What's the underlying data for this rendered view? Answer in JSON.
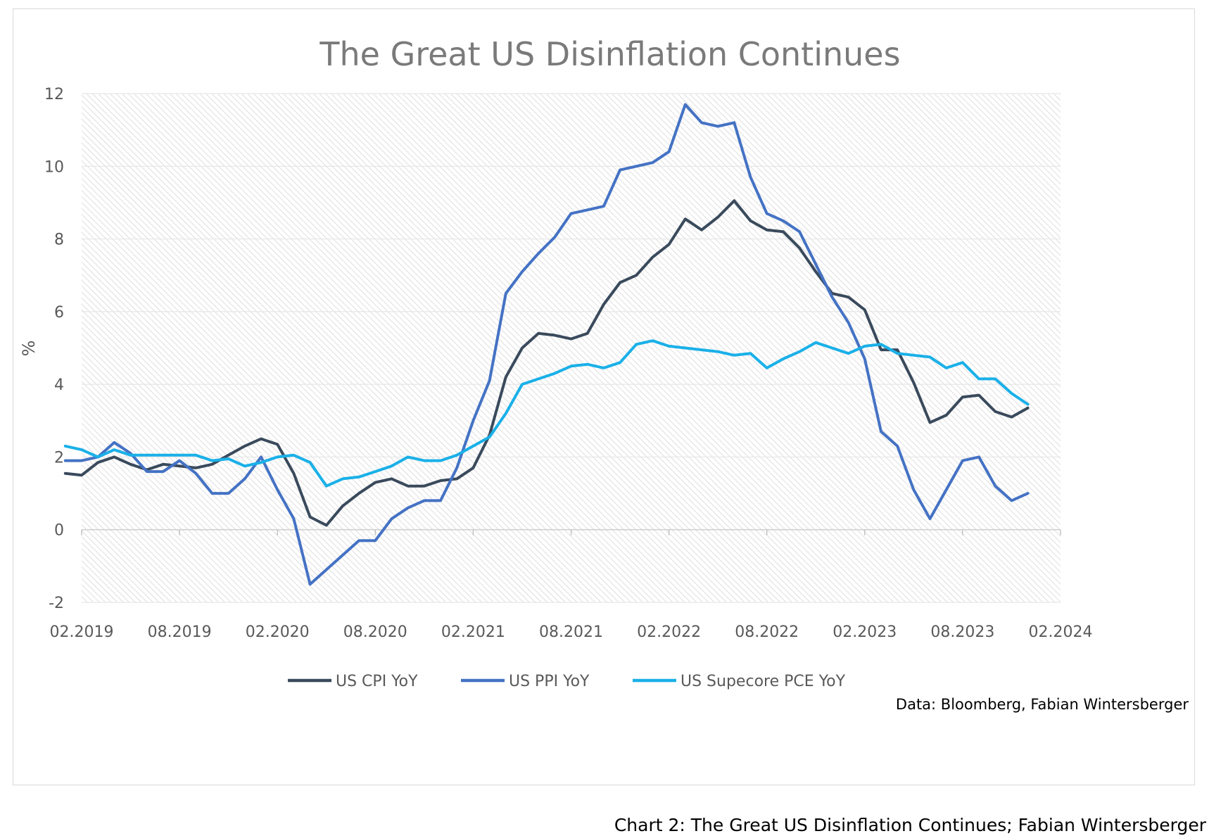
{
  "caption": "Chart 2: The Great US Disinflation Continues; Fabian Wintersberger",
  "chart_data": {
    "type": "line",
    "title": "The Great US Disinflation Continues",
    "xlabel": "",
    "ylabel": "%",
    "ylim": [
      -2,
      12
    ],
    "yticks": [
      -2,
      0,
      2,
      4,
      6,
      8,
      10,
      12
    ],
    "xlim": [
      "02.2019",
      "02.2024"
    ],
    "xticks": [
      "02.2019",
      "08.2019",
      "02.2020",
      "08.2020",
      "02.2021",
      "08.2021",
      "02.2022",
      "08.2022",
      "02.2023",
      "08.2023",
      "02.2024"
    ],
    "grid": true,
    "legend": "bottom",
    "source": "Data: Bloomberg, Fabian Wintersberger",
    "x": [
      "01.2019",
      "02.2019",
      "03.2019",
      "04.2019",
      "05.2019",
      "06.2019",
      "07.2019",
      "08.2019",
      "09.2019",
      "10.2019",
      "11.2019",
      "12.2019",
      "01.2020",
      "02.2020",
      "03.2020",
      "04.2020",
      "05.2020",
      "06.2020",
      "07.2020",
      "08.2020",
      "09.2020",
      "10.2020",
      "11.2020",
      "12.2020",
      "01.2021",
      "02.2021",
      "03.2021",
      "04.2021",
      "05.2021",
      "06.2021",
      "07.2021",
      "08.2021",
      "09.2021",
      "10.2021",
      "11.2021",
      "12.2021",
      "01.2022",
      "02.2022",
      "03.2022",
      "04.2022",
      "05.2022",
      "06.2022",
      "07.2022",
      "08.2022",
      "09.2022",
      "10.2022",
      "11.2022",
      "12.2022",
      "01.2023",
      "02.2023",
      "03.2023",
      "04.2023",
      "05.2023",
      "06.2023",
      "07.2023",
      "08.2023",
      "09.2023",
      "10.2023",
      "11.2023",
      "12.2023"
    ],
    "series": [
      {
        "name": "US CPI YoY",
        "color": "#3a4a5c",
        "values": [
          1.55,
          1.5,
          1.85,
          2.0,
          1.8,
          1.65,
          1.8,
          1.75,
          1.7,
          1.8,
          2.05,
          2.3,
          2.5,
          2.35,
          1.55,
          0.35,
          0.12,
          0.65,
          1.0,
          1.3,
          1.4,
          1.2,
          1.2,
          1.35,
          1.4,
          1.7,
          2.6,
          4.2,
          5.0,
          5.4,
          5.35,
          5.25,
          5.4,
          6.2,
          6.8,
          7.0,
          7.5,
          7.85,
          8.55,
          8.25,
          8.6,
          9.05,
          8.5,
          8.25,
          8.2,
          7.75,
          7.1,
          6.5,
          6.4,
          6.05,
          4.95,
          4.95,
          4.05,
          2.95,
          3.15,
          3.65,
          3.7,
          3.25,
          3.1,
          3.35
        ]
      },
      {
        "name": "US PPI YoY",
        "color": "#4472c4",
        "values": [
          1.9,
          1.9,
          2.0,
          2.4,
          2.1,
          1.6,
          1.6,
          1.9,
          1.55,
          1.0,
          1.0,
          1.4,
          2.0,
          1.1,
          0.3,
          -1.5,
          -1.1,
          -0.7,
          -0.3,
          -0.3,
          0.3,
          0.6,
          0.8,
          0.8,
          1.7,
          3.0,
          4.1,
          6.5,
          7.1,
          7.6,
          8.05,
          8.7,
          8.8,
          8.9,
          9.9,
          10.0,
          10.1,
          10.4,
          11.7,
          11.2,
          11.1,
          11.2,
          9.7,
          8.7,
          8.5,
          8.2,
          7.3,
          6.4,
          5.7,
          4.7,
          2.7,
          2.3,
          1.1,
          0.3,
          1.1,
          1.9,
          2.0,
          1.2,
          0.8,
          1.0
        ]
      },
      {
        "name": "US Supecore PCE YoY",
        "color": "#1ab0e8",
        "values": [
          2.3,
          2.2,
          2.0,
          2.2,
          2.05,
          2.05,
          2.05,
          2.05,
          2.05,
          1.9,
          1.95,
          1.75,
          1.85,
          2.0,
          2.05,
          1.85,
          1.2,
          1.4,
          1.45,
          1.6,
          1.75,
          2.0,
          1.9,
          1.9,
          2.05,
          2.3,
          2.55,
          3.2,
          4.0,
          4.15,
          4.3,
          4.5,
          4.55,
          4.45,
          4.6,
          5.1,
          5.2,
          5.05,
          5.0,
          4.95,
          4.9,
          4.8,
          4.85,
          4.45,
          4.7,
          4.9,
          5.15,
          5.0,
          4.85,
          5.05,
          5.1,
          4.85,
          4.8,
          4.75,
          4.45,
          4.6,
          4.15,
          4.15,
          3.75,
          3.45
        ]
      }
    ]
  }
}
